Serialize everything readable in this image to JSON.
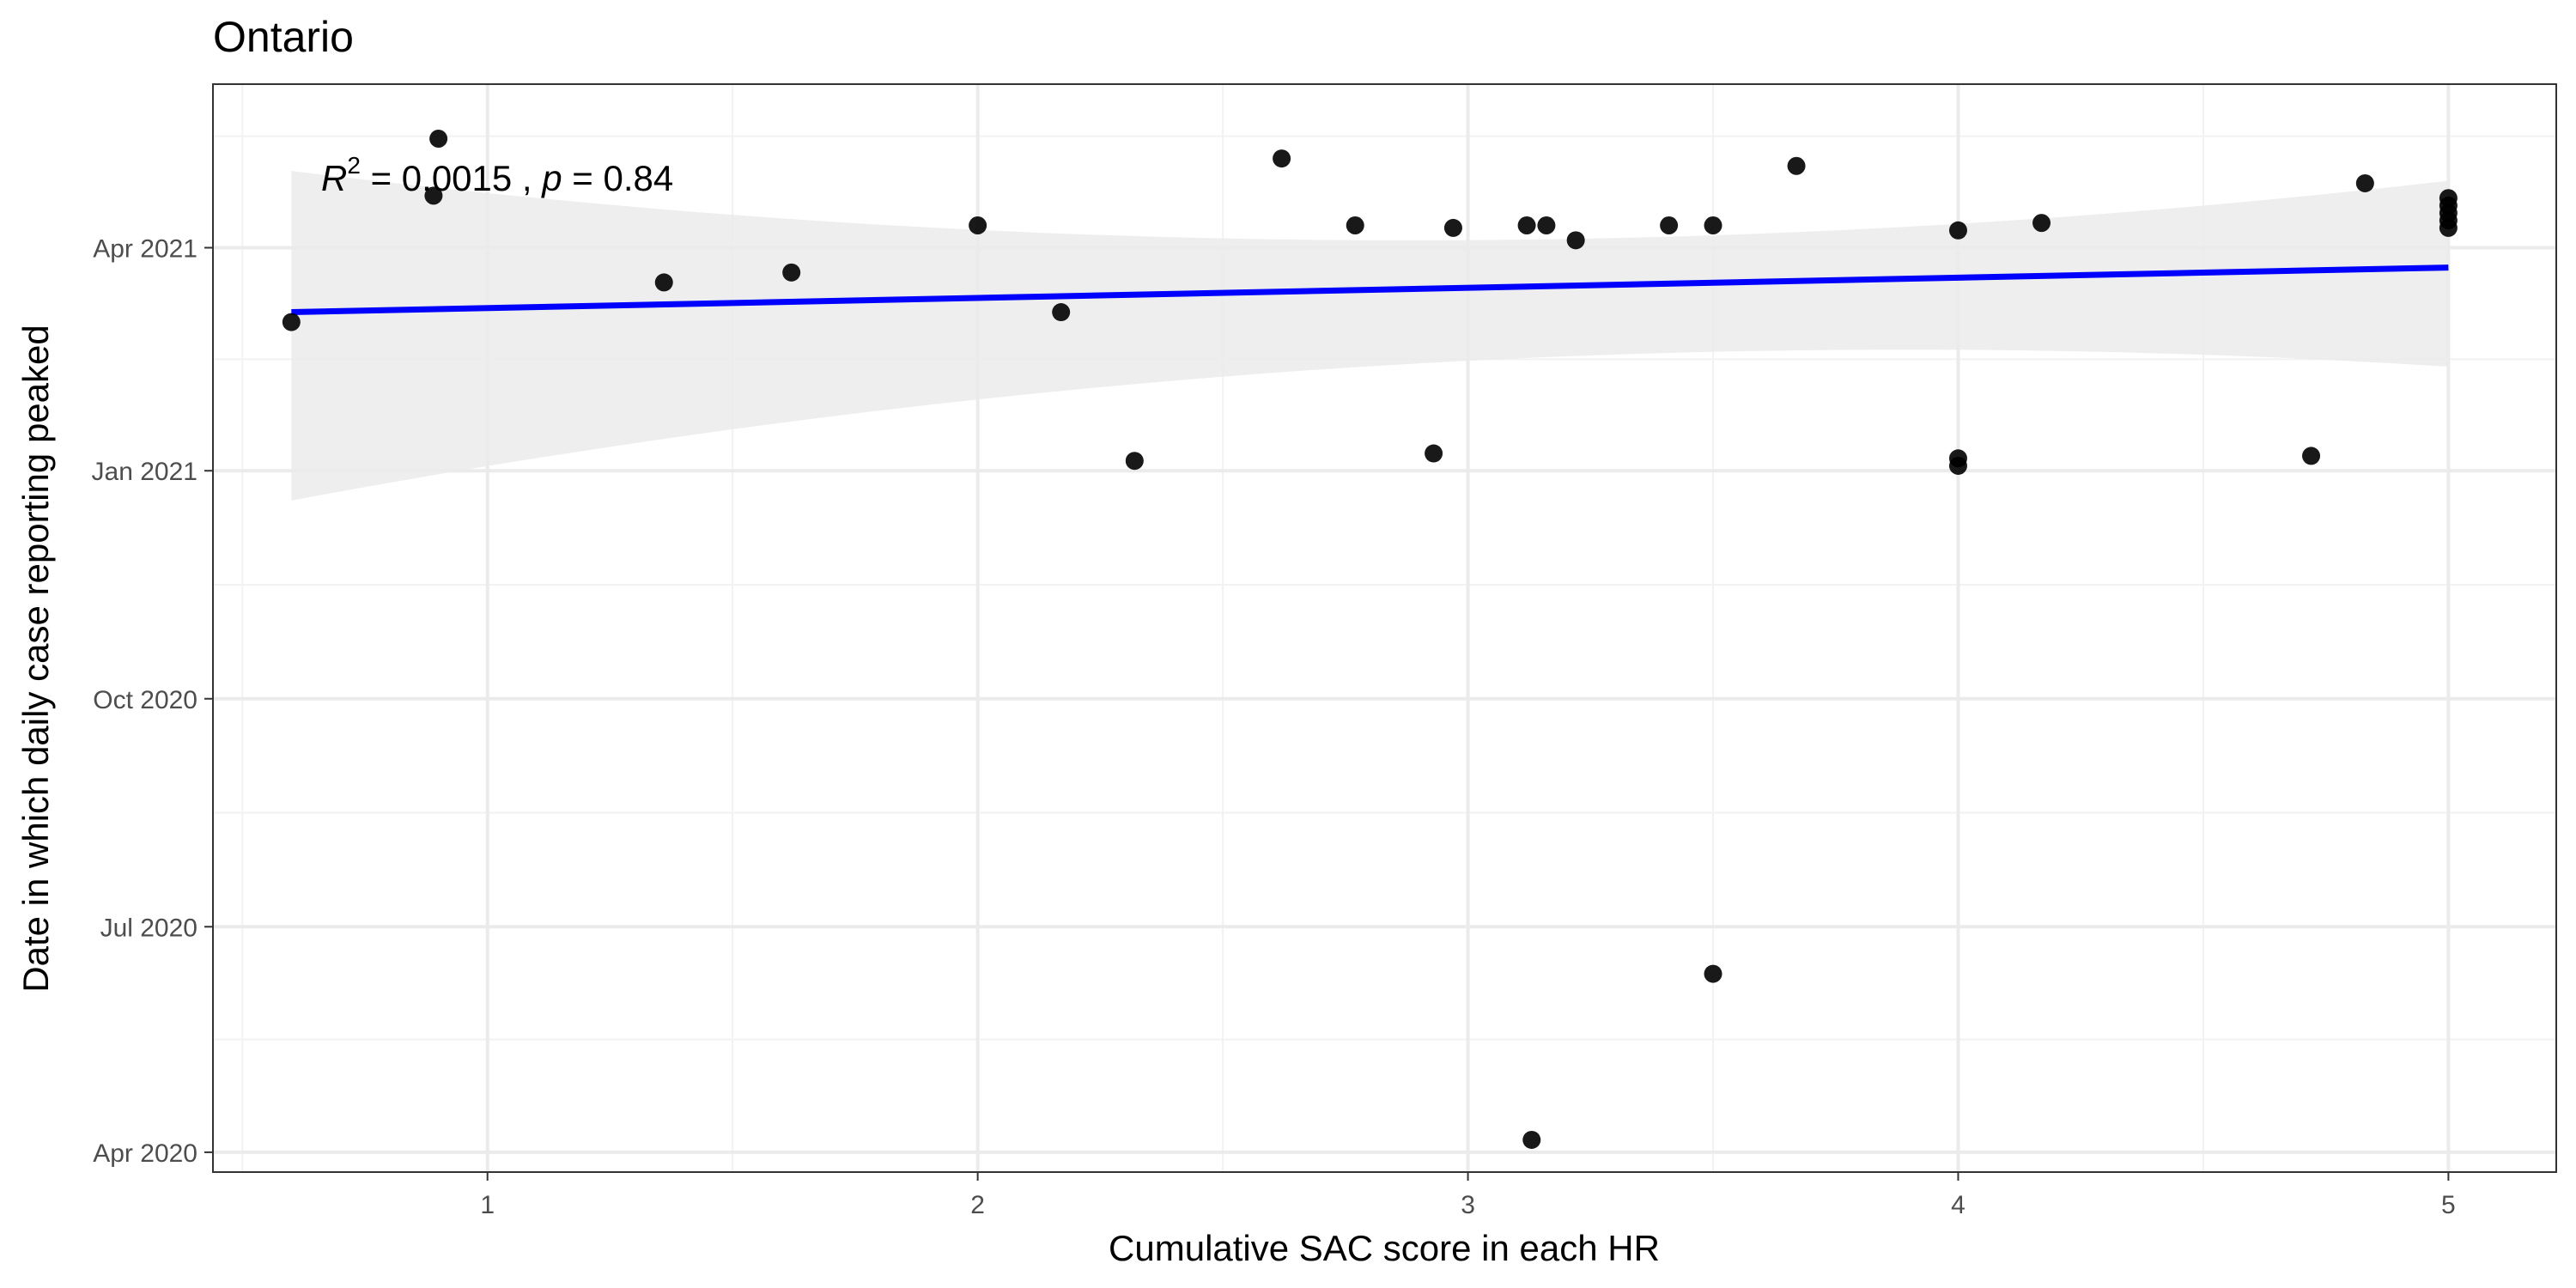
{
  "chart_data": {
    "type": "scatter",
    "title": "Ontario",
    "xlabel": "Cumulative SAC score in each HR",
    "ylabel": "Date in which daily case reporting peaked",
    "x_ticks": [
      1,
      2,
      3,
      4,
      5
    ],
    "y_ticks": [
      {
        "label": "Apr 2020",
        "date": "2020-04-01"
      },
      {
        "label": "Jul 2020",
        "date": "2020-07-01"
      },
      {
        "label": "Oct 2020",
        "date": "2020-10-01"
      },
      {
        "label": "Jan 2021",
        "date": "2021-01-01"
      },
      {
        "label": "Apr 2021",
        "date": "2021-04-01"
      }
    ],
    "xlim": [
      0.44,
      5.22
    ],
    "ylim": [
      "2020-03-24",
      "2021-06-06"
    ],
    "grid": true,
    "points": [
      {
        "x": 0.6,
        "y": "2021-03-02"
      },
      {
        "x": 0.89,
        "y": "2021-04-22"
      },
      {
        "x": 0.9,
        "y": "2021-05-15"
      },
      {
        "x": 1.36,
        "y": "2021-03-18"
      },
      {
        "x": 1.62,
        "y": "2021-03-22"
      },
      {
        "x": 2.0,
        "y": "2021-04-10"
      },
      {
        "x": 2.17,
        "y": "2021-03-06"
      },
      {
        "x": 2.32,
        "y": "2021-01-05"
      },
      {
        "x": 2.62,
        "y": "2021-05-07"
      },
      {
        "x": 2.77,
        "y": "2021-04-10"
      },
      {
        "x": 2.93,
        "y": "2021-01-08"
      },
      {
        "x": 2.97,
        "y": "2021-04-09"
      },
      {
        "x": 3.12,
        "y": "2021-04-10"
      },
      {
        "x": 3.13,
        "y": "2020-04-06"
      },
      {
        "x": 3.16,
        "y": "2021-04-10"
      },
      {
        "x": 3.22,
        "y": "2021-04-04"
      },
      {
        "x": 3.41,
        "y": "2021-04-10"
      },
      {
        "x": 3.5,
        "y": "2021-04-10"
      },
      {
        "x": 3.5,
        "y": "2020-06-12"
      },
      {
        "x": 3.67,
        "y": "2021-05-04"
      },
      {
        "x": 4.0,
        "y": "2021-04-08"
      },
      {
        "x": 4.0,
        "y": "2021-01-06"
      },
      {
        "x": 4.0,
        "y": "2021-01-03"
      },
      {
        "x": 4.17,
        "y": "2021-04-11"
      },
      {
        "x": 4.72,
        "y": "2021-01-07"
      },
      {
        "x": 4.83,
        "y": "2021-04-27"
      },
      {
        "x": 5.0,
        "y": "2021-04-21"
      },
      {
        "x": 5.0,
        "y": "2021-04-18"
      },
      {
        "x": 5.0,
        "y": "2021-04-15"
      },
      {
        "x": 5.0,
        "y": "2021-04-12"
      },
      {
        "x": 5.0,
        "y": "2021-04-09"
      }
    ],
    "fit": {
      "method": "linear",
      "x_range": [
        0.6,
        5.0
      ],
      "line": [
        "2021-03-06",
        "2021-03-24"
      ],
      "ci_lower": [
        "2020-12-20",
        "2021-02-12"
      ],
      "ci_upper": [
        "2021-05-02",
        "2021-04-28"
      ],
      "ci_middle": {
        "x": 3.5,
        "lower": "2021-02-18",
        "upper": "2021-04-06"
      },
      "line_color": "#0000ff",
      "ci_color": "#ebebeb"
    },
    "annotation": {
      "r_symbol": "R",
      "r_exponent": "2",
      "r_value_text": " = 0.0015 , ",
      "p_symbol": "p",
      "p_value_text": " = 0.84"
    }
  }
}
